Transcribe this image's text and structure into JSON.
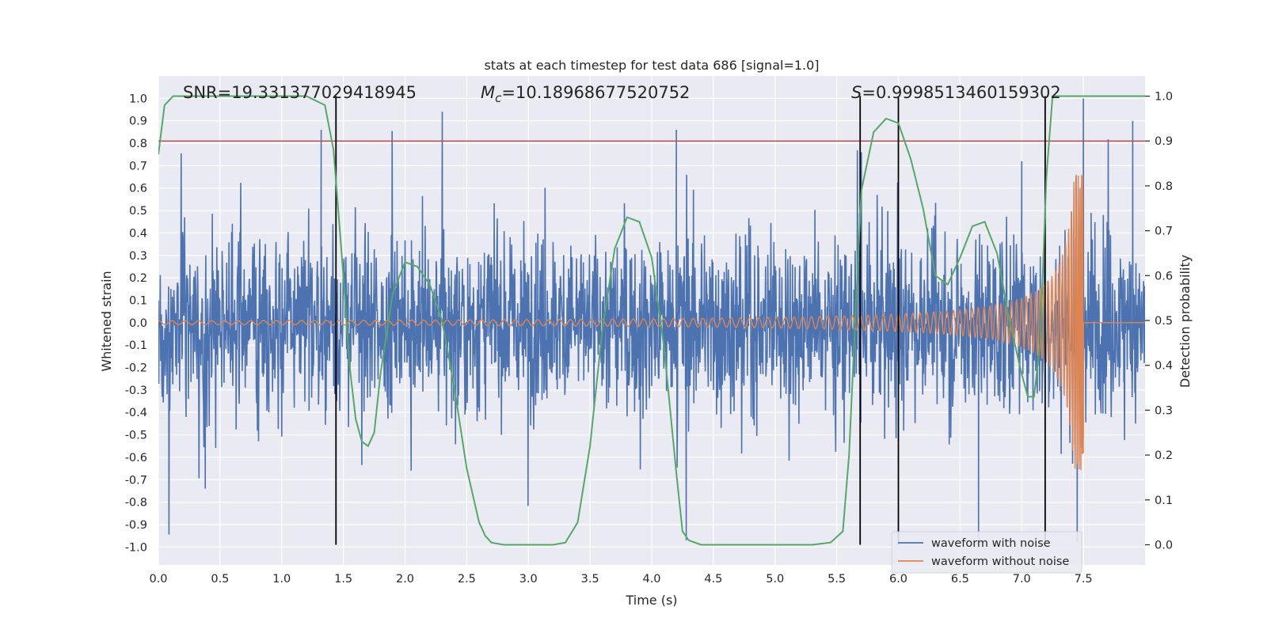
{
  "chart_data": {
    "type": "line",
    "title": "stats at each timestep for test data 686 [signal=1.0]",
    "xlabel": "Time (s)",
    "ylabel": "Whitened strain",
    "y2label": "Detection probability",
    "xlim": [
      0.0,
      8.0
    ],
    "ylim": [
      -1.08,
      1.1
    ],
    "y2lim": [
      -0.045,
      1.045
    ],
    "xticks": [
      "0.0",
      "0.5",
      "1.0",
      "1.5",
      "2.0",
      "2.5",
      "3.0",
      "3.5",
      "4.0",
      "4.5",
      "5.0",
      "5.5",
      "6.0",
      "6.5",
      "7.0",
      "7.5"
    ],
    "yticks": [
      "1.0",
      "0.9",
      "0.8",
      "0.7",
      "0.6",
      "0.5",
      "0.4",
      "0.3",
      "0.2",
      "0.1",
      "0.0",
      "-0.1",
      "-0.2",
      "-0.3",
      "-0.4",
      "-0.5",
      "-0.6",
      "-0.7",
      "-0.8",
      "-0.9",
      "-1.0"
    ],
    "y2ticks": [
      "1.0",
      "0.9",
      "0.8",
      "0.7",
      "0.6",
      "0.5",
      "0.4",
      "0.3",
      "0.2",
      "0.1",
      "0.0"
    ],
    "grid": true,
    "stats": {
      "snr": "SNR=19.331377029418945",
      "mc": "=10.18968677520752",
      "s": "=0.9998513460159302"
    },
    "threshold": {
      "probability": 0.9,
      "color": "#c44e52"
    },
    "detection_lines_x": [
      1.44,
      5.69,
      6.0,
      7.19
    ],
    "series": [
      {
        "name": "waveform with noise",
        "color": "#4c72b0",
        "description": "noisy whitened strain, envelope roughly ±0.4 with spikes to about ±0.9 across 0–8 s",
        "sample_peaks": [
          [
            1.32,
            0.86
          ],
          [
            4.2,
            0.86
          ],
          [
            5.7,
            0.76
          ],
          [
            7.0,
            0.72
          ],
          [
            7.5,
            1.0
          ],
          [
            7.9,
            0.9
          ],
          [
            4.28,
            -0.97
          ],
          [
            6.65,
            -0.97
          ],
          [
            0.38,
            -0.74
          ],
          [
            7.45,
            -0.98
          ]
        ]
      },
      {
        "name": "waveform without noise",
        "color": "#dd8452",
        "description": "chirp signal, amplitude ~0.01 at t=0 rising to about ±0.65 near merger at t≈7.5 s, then flat",
        "merger_time": 7.5,
        "peak_amplitude": 0.66
      },
      {
        "name": "detection probability",
        "color": "#55a868",
        "axis": "right",
        "x": [
          0.0,
          0.05,
          0.12,
          0.2,
          0.4,
          0.8,
          1.2,
          1.35,
          1.42,
          1.5,
          1.55,
          1.6,
          1.65,
          1.7,
          1.75,
          1.8,
          1.9,
          2.0,
          2.1,
          2.2,
          2.3,
          2.4,
          2.5,
          2.6,
          2.65,
          2.7,
          2.8,
          3.0,
          3.2,
          3.3,
          3.4,
          3.5,
          3.6,
          3.7,
          3.8,
          3.9,
          4.0,
          4.1,
          4.2,
          4.25,
          4.3,
          4.4,
          4.6,
          5.0,
          5.3,
          5.45,
          5.55,
          5.6,
          5.65,
          5.7,
          5.8,
          5.9,
          6.0,
          6.1,
          6.2,
          6.3,
          6.4,
          6.5,
          6.6,
          6.7,
          6.8,
          6.9,
          7.0,
          7.05,
          7.1,
          7.15,
          7.2,
          7.25,
          7.3,
          7.35,
          7.4,
          7.5,
          7.6,
          7.7,
          8.0
        ],
        "values": [
          0.87,
          0.98,
          1.0,
          1.0,
          1.0,
          1.0,
          1.0,
          0.98,
          0.88,
          0.6,
          0.4,
          0.28,
          0.23,
          0.22,
          0.25,
          0.38,
          0.56,
          0.63,
          0.62,
          0.58,
          0.5,
          0.35,
          0.17,
          0.05,
          0.02,
          0.005,
          0.0,
          0.0,
          0.0,
          0.005,
          0.05,
          0.22,
          0.48,
          0.66,
          0.73,
          0.72,
          0.64,
          0.44,
          0.16,
          0.03,
          0.01,
          0.0,
          0.0,
          0.0,
          0.0,
          0.005,
          0.03,
          0.2,
          0.5,
          0.79,
          0.92,
          0.95,
          0.94,
          0.86,
          0.75,
          0.6,
          0.58,
          0.64,
          0.71,
          0.72,
          0.65,
          0.5,
          0.38,
          0.33,
          0.33,
          0.45,
          0.82,
          1.0,
          1.0,
          1.0,
          1.0,
          1.0,
          1.0,
          1.0,
          1.0
        ]
      }
    ],
    "legend": {
      "position": "lower-right",
      "entries": [
        "waveform with noise",
        "waveform without noise"
      ]
    }
  }
}
